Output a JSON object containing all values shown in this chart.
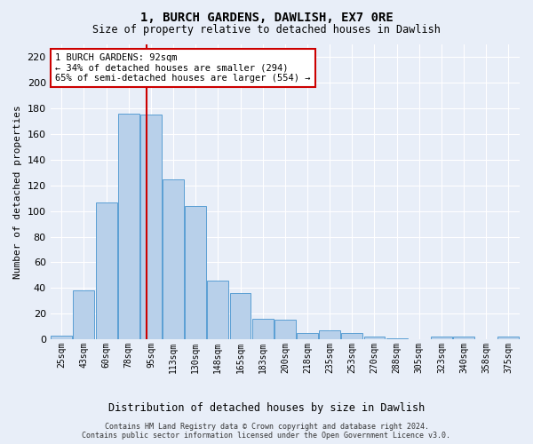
{
  "title": "1, BURCH GARDENS, DAWLISH, EX7 0RE",
  "subtitle": "Size of property relative to detached houses in Dawlish",
  "xlabel": "Distribution of detached houses by size in Dawlish",
  "ylabel": "Number of detached properties",
  "categories": [
    "25sqm",
    "43sqm",
    "60sqm",
    "78sqm",
    "95sqm",
    "113sqm",
    "130sqm",
    "148sqm",
    "165sqm",
    "183sqm",
    "200sqm",
    "218sqm",
    "235sqm",
    "253sqm",
    "270sqm",
    "288sqm",
    "305sqm",
    "323sqm",
    "340sqm",
    "358sqm",
    "375sqm"
  ],
  "values": [
    3,
    38,
    107,
    176,
    175,
    125,
    104,
    46,
    36,
    16,
    15,
    5,
    7,
    5,
    2,
    1,
    0,
    2,
    2,
    0,
    2
  ],
  "bar_color": "#b8d0ea",
  "bar_edge_color": "#5a9fd4",
  "vline_color": "#cc0000",
  "vline_index": 4,
  "annotation_line1": "1 BURCH GARDENS: 92sqm",
  "annotation_line2": "← 34% of detached houses are smaller (294)",
  "annotation_line3": "65% of semi-detached houses are larger (554) →",
  "annotation_box_color": "#ffffff",
  "annotation_box_edge": "#cc0000",
  "ylim": [
    0,
    230
  ],
  "yticks": [
    0,
    20,
    40,
    60,
    80,
    100,
    120,
    140,
    160,
    180,
    200,
    220
  ],
  "footer_line1": "Contains HM Land Registry data © Crown copyright and database right 2024.",
  "footer_line2": "Contains public sector information licensed under the Open Government Licence v3.0.",
  "background_color": "#e8eef8",
  "grid_color": "#ffffff"
}
